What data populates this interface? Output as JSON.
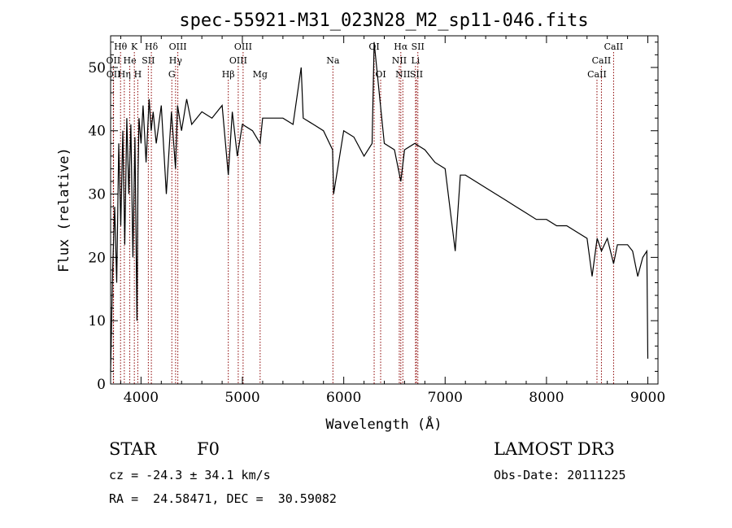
{
  "chart_data": {
    "type": "line",
    "title": "spec-55921-M31_023N28_M2_sp11-046.fits",
    "xlabel": "Wavelength (Å)",
    "ylabel": "Flux (relative)",
    "xlim": [
      3700,
      9100
    ],
    "ylim": [
      0,
      55
    ],
    "x_ticks": [
      4000,
      5000,
      6000,
      7000,
      8000,
      9000
    ],
    "y_ticks": [
      0,
      10,
      20,
      30,
      40,
      50
    ],
    "series": [
      {
        "name": "flux",
        "x": [
          3700,
          3720,
          3740,
          3760,
          3780,
          3800,
          3820,
          3840,
          3860,
          3880,
          3900,
          3920,
          3940,
          3960,
          3970,
          3980,
          4000,
          4020,
          4050,
          4080,
          4100,
          4120,
          4150,
          4200,
          4250,
          4300,
          4340,
          4360,
          4400,
          4450,
          4500,
          4600,
          4700,
          4800,
          4861,
          4900,
          4950,
          5000,
          5100,
          5175,
          5200,
          5300,
          5400,
          5500,
          5580,
          5600,
          5700,
          5800,
          5890,
          5900,
          6000,
          6100,
          6200,
          6280,
          6300,
          6400,
          6500,
          6563,
          6600,
          6700,
          6800,
          6900,
          7000,
          7100,
          7150,
          7200,
          7300,
          7400,
          7500,
          7600,
          7700,
          7800,
          7900,
          8000,
          8100,
          8200,
          8300,
          8400,
          8450,
          8500,
          8542,
          8600,
          8662,
          8700,
          8800,
          8850,
          8900,
          8950,
          8990,
          9000
        ],
        "y": [
          2,
          18,
          28,
          16,
          38,
          25,
          40,
          22,
          42,
          30,
          41,
          20,
          39,
          10,
          33,
          42,
          38,
          44,
          35,
          45,
          40,
          43,
          38,
          44,
          30,
          43,
          34,
          44,
          40,
          45,
          41,
          43,
          42,
          44,
          33,
          43,
          36,
          41,
          40,
          38,
          42,
          42,
          42,
          41,
          50,
          42,
          41,
          40,
          37,
          30,
          40,
          39,
          36,
          38,
          54,
          38,
          37,
          32,
          37,
          38,
          37,
          35,
          34,
          21,
          33,
          33,
          32,
          31,
          30,
          29,
          28,
          27,
          26,
          26,
          25,
          25,
          24,
          23,
          17,
          23,
          21,
          23,
          19,
          22,
          22,
          21,
          17,
          20,
          21,
          4
        ]
      }
    ],
    "emission_lines": [
      {
        "label": "Hθ",
        "x": 3798,
        "row": 1
      },
      {
        "label": "K",
        "x": 3934,
        "row": 1
      },
      {
        "label": "Hδ",
        "x": 4102,
        "row": 1
      },
      {
        "label": "OIII",
        "x": 4363,
        "row": 1
      },
      {
        "label": "OIII",
        "x": 5007,
        "row": 1
      },
      {
        "label": "OI",
        "x": 6300,
        "row": 1
      },
      {
        "label": "Hα",
        "x": 6563,
        "row": 1
      },
      {
        "label": "SII",
        "x": 6731,
        "row": 1
      },
      {
        "label": "CaII",
        "x": 8662,
        "row": 1
      },
      {
        "label": "OII",
        "x": 3727,
        "row": 2
      },
      {
        "label": "He",
        "x": 3889,
        "row": 2
      },
      {
        "label": "SII",
        "x": 4072,
        "row": 2
      },
      {
        "label": "Hγ",
        "x": 4341,
        "row": 2
      },
      {
        "label": "OIII",
        "x": 4959,
        "row": 2
      },
      {
        "label": "Na",
        "x": 5893,
        "row": 2
      },
      {
        "label": "NII",
        "x": 6548,
        "row": 2
      },
      {
        "label": "Li",
        "x": 6708,
        "row": 2
      },
      {
        "label": "CaII",
        "x": 8542,
        "row": 2
      },
      {
        "label": "OII",
        "x": 3729,
        "row": 3
      },
      {
        "label": "Hη",
        "x": 3835,
        "row": 3
      },
      {
        "label": "H",
        "x": 3968,
        "row": 3
      },
      {
        "label": "G",
        "x": 4304,
        "row": 3
      },
      {
        "label": "Hβ",
        "x": 4861,
        "row": 3
      },
      {
        "label": "Mg",
        "x": 5175,
        "row": 3
      },
      {
        "label": "OI",
        "x": 6364,
        "row": 3
      },
      {
        "label": "NII",
        "x": 6583,
        "row": 3
      },
      {
        "label": "SII",
        "x": 6717,
        "row": 3
      },
      {
        "label": "CaII",
        "x": 8498,
        "row": 3
      }
    ]
  },
  "info": {
    "class": "STAR",
    "subclass": "F0",
    "survey": "LAMOST DR3",
    "redshift": "cz = -24.3 ± 34.1 km/s",
    "obs_date": "Obs-Date: 20111225",
    "coords": "RA =  24.58471, DEC =  30.59082"
  },
  "colors": {
    "line_marker": "#8b0000",
    "spectrum": "#000000"
  }
}
